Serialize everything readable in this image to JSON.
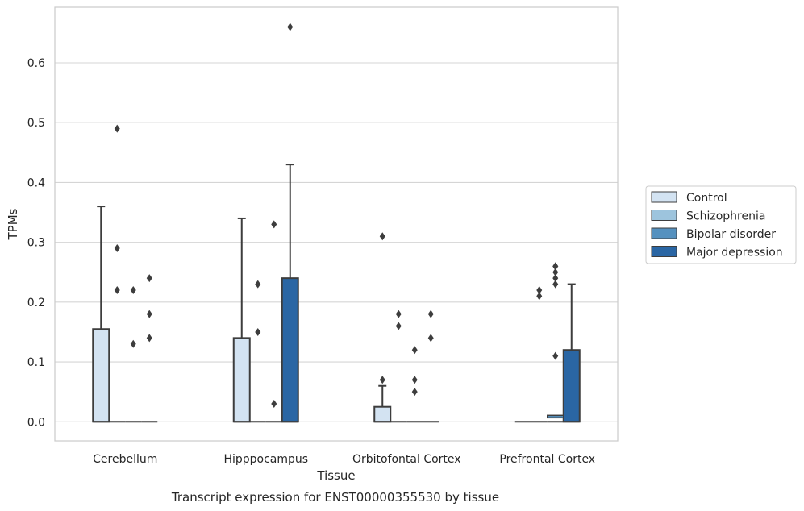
{
  "chart_data": {
    "type": "box",
    "xlabel": "Tissue",
    "ylabel": "TPMs",
    "caption": "Transcript expression for ENST00000355530 by tissue",
    "ylim": [
      -0.032,
      0.693
    ],
    "yticks": [
      0.0,
      0.1,
      0.2,
      0.3,
      0.4,
      0.5,
      0.6
    ],
    "ytick_labels": [
      "0.0",
      "0.1",
      "0.2",
      "0.3",
      "0.4",
      "0.5",
      "0.6"
    ],
    "grid": "horizontal",
    "legend_position": "right",
    "categories": [
      "Cerebellum",
      "Hipppocampus",
      "Orbitofontal Cortex",
      "Prefrontal Cortex"
    ],
    "series": [
      {
        "name": "Control",
        "color": "#d3e3f2",
        "boxes": [
          {
            "q1": 0.0,
            "median": 0.0,
            "q3": 0.155,
            "whisker_low": 0.0,
            "whisker_high": 0.36,
            "outliers": []
          },
          {
            "q1": 0.0,
            "median": 0.0,
            "q3": 0.14,
            "whisker_low": 0.0,
            "whisker_high": 0.34,
            "outliers": []
          },
          {
            "q1": 0.0,
            "median": 0.0,
            "q3": 0.025,
            "whisker_low": 0.0,
            "whisker_high": 0.06,
            "outliers": [
              0.07,
              0.31
            ]
          },
          {
            "q1": 0.0,
            "median": 0.0,
            "q3": 0.0,
            "whisker_low": 0.0,
            "whisker_high": 0.0,
            "outliers": []
          }
        ]
      },
      {
        "name": "Schizophrenia",
        "color": "#9dc4dd",
        "boxes": [
          {
            "q1": 0.0,
            "median": 0.0,
            "q3": 0.0,
            "whisker_low": 0.0,
            "whisker_high": 0.0,
            "outliers": [
              0.22,
              0.29,
              0.49
            ]
          },
          {
            "q1": 0.0,
            "median": 0.0,
            "q3": 0.0,
            "whisker_low": 0.0,
            "whisker_high": 0.0,
            "outliers": [
              0.15,
              0.23
            ]
          },
          {
            "q1": 0.0,
            "median": 0.0,
            "q3": 0.0,
            "whisker_low": 0.0,
            "whisker_high": 0.0,
            "outliers": [
              0.16,
              0.18
            ]
          },
          {
            "q1": 0.0,
            "median": 0.0,
            "q3": 0.0,
            "whisker_low": 0.0,
            "whisker_high": 0.0,
            "outliers": [
              0.21,
              0.22
            ]
          }
        ]
      },
      {
        "name": "Bipolar disorder",
        "color": "#5591bf",
        "boxes": [
          {
            "q1": 0.0,
            "median": 0.0,
            "q3": 0.0,
            "whisker_low": 0.0,
            "whisker_high": 0.0,
            "outliers": [
              0.13,
              0.22
            ]
          },
          {
            "q1": 0.0,
            "median": 0.0,
            "q3": 0.0,
            "whisker_low": 0.0,
            "whisker_high": 0.0,
            "outliers": [
              0.03,
              0.33
            ]
          },
          {
            "q1": 0.0,
            "median": 0.0,
            "q3": 0.0,
            "whisker_low": 0.0,
            "whisker_high": 0.0,
            "outliers": [
              0.05,
              0.07,
              0.12
            ]
          },
          {
            "q1": 0.0,
            "median": 0.0,
            "q3": 0.0,
            "whisker_low": 0.0,
            "whisker_high": 0.0,
            "outliers": [
              0.11,
              0.24,
              0.26
            ]
          }
        ]
      },
      {
        "name": "Major depression",
        "color": "#2a66a4",
        "boxes": [
          {
            "q1": 0.0,
            "median": 0.0,
            "q3": 0.0,
            "whisker_low": 0.0,
            "whisker_high": 0.0,
            "outliers": [
              0.14,
              0.18,
              0.24
            ]
          },
          {
            "q1": 0.0,
            "median": 0.0,
            "q3": 0.24,
            "whisker_low": 0.0,
            "whisker_high": 0.43,
            "outliers": [
              0.66
            ]
          },
          {
            "q1": 0.0,
            "median": 0.0,
            "q3": 0.0,
            "whisker_low": 0.0,
            "whisker_high": 0.0,
            "outliers": [
              0.14,
              0.18
            ]
          },
          {
            "q1": 0.0,
            "median": 0.0,
            "q3": 0.12,
            "whisker_low": 0.0,
            "whisker_high": 0.23,
            "outliers": []
          }
        ]
      }
    ],
    "extra_boxes": [
      {
        "category": "Prefrontal Cortex",
        "series": "Bipolar disorder",
        "q1": 0.0,
        "median": 0.008,
        "q3": 0.008,
        "note_outliers_second_column": [
          0.23,
          0.25,
          0.26
        ]
      }
    ]
  }
}
